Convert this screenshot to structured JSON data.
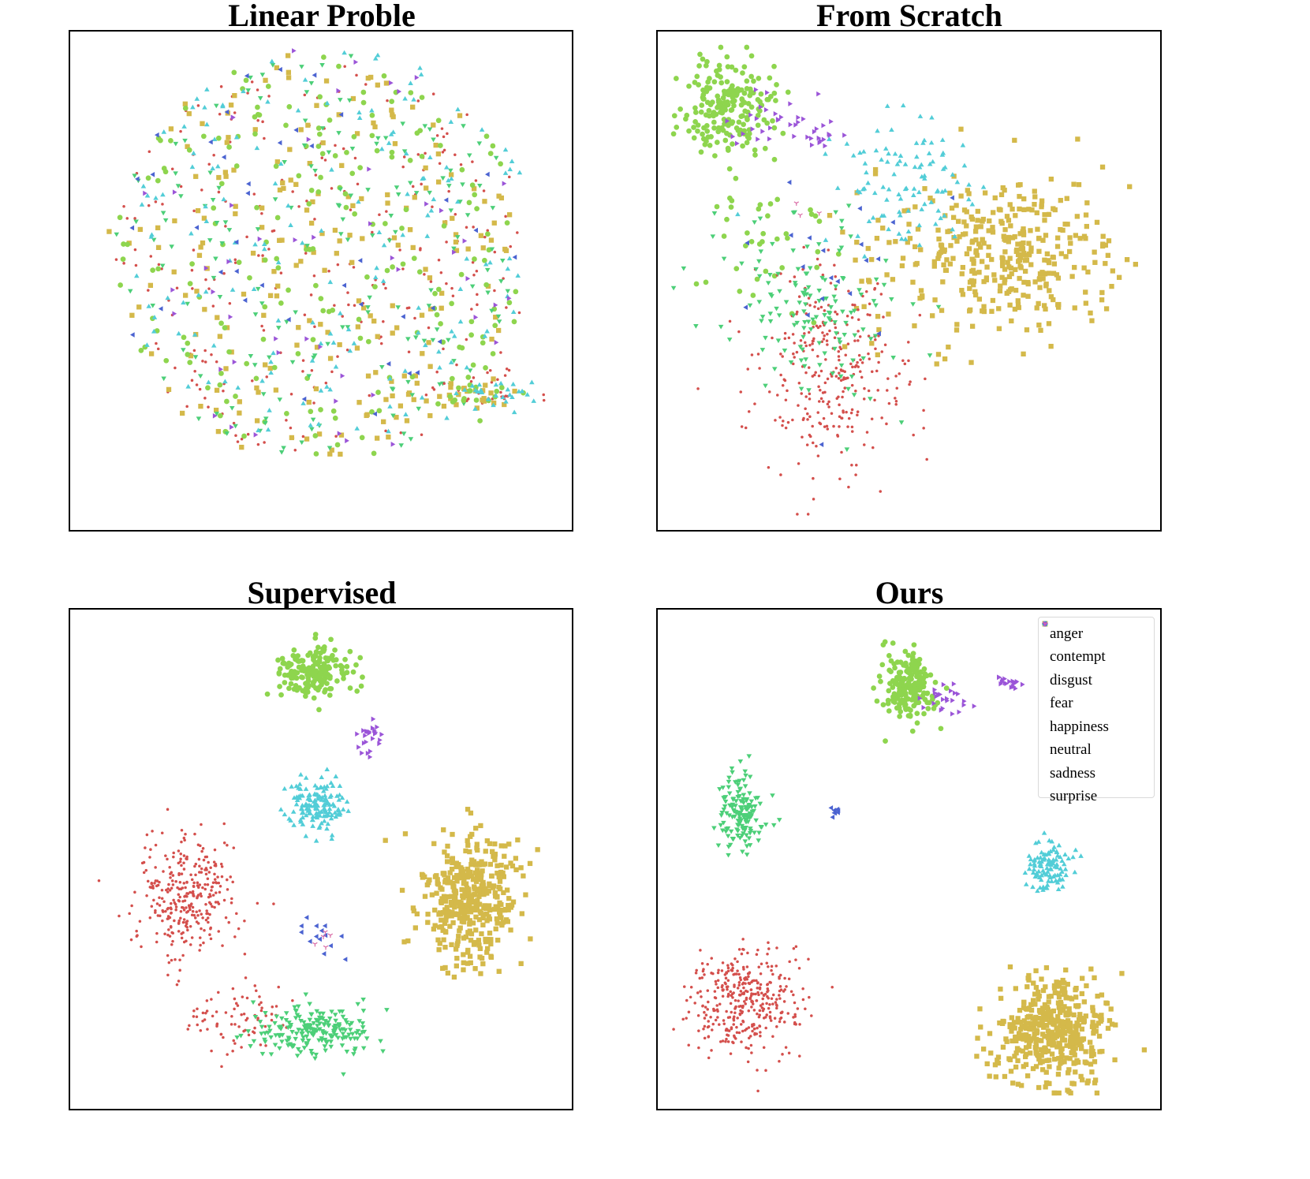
{
  "legend": {
    "classes": [
      "anger",
      "contempt",
      "disgust",
      "fear",
      "happiness",
      "neutral",
      "sadness",
      "surprise"
    ],
    "colors": [
      "#d44f4c",
      "#d4b94a",
      "#8ed54e",
      "#4ccf78",
      "#52cdd7",
      "#4b63d1",
      "#9b55d8",
      "#d96aa5"
    ],
    "markers": [
      "dot",
      "square",
      "circle",
      "triangle-down",
      "triangle-up",
      "triangle-left",
      "triangle-right",
      "tri-down"
    ]
  },
  "chart_data": [
    {
      "type": "scatter",
      "title": "Linear Proble",
      "xlabel": "",
      "ylabel": "",
      "grid": false,
      "legend": "none",
      "clusters": [
        {
          "class": "anger",
          "center": [
            0.5,
            0.55
          ],
          "spread": [
            0.42,
            0.42
          ],
          "count": 260
        },
        {
          "class": "contempt",
          "center": [
            0.48,
            0.55
          ],
          "spread": [
            0.42,
            0.42
          ],
          "count": 220
        },
        {
          "class": "disgust",
          "center": [
            0.5,
            0.55
          ],
          "spread": [
            0.42,
            0.42
          ],
          "count": 200
        },
        {
          "class": "fear",
          "center": [
            0.5,
            0.55
          ],
          "spread": [
            0.42,
            0.42
          ],
          "count": 170
        },
        {
          "class": "happiness",
          "center": [
            0.52,
            0.56
          ],
          "spread": [
            0.42,
            0.42
          ],
          "count": 160
        },
        {
          "class": "neutral",
          "center": [
            0.5,
            0.56
          ],
          "spread": [
            0.42,
            0.42
          ],
          "count": 40
        },
        {
          "class": "sadness",
          "center": [
            0.5,
            0.56
          ],
          "spread": [
            0.42,
            0.42
          ],
          "count": 50
        },
        {
          "class": "anger",
          "center": [
            0.83,
            0.27
          ],
          "spread": [
            0.14,
            0.05
          ],
          "count": 30
        },
        {
          "class": "contempt",
          "center": [
            0.83,
            0.26
          ],
          "spread": [
            0.12,
            0.04
          ],
          "count": 22
        },
        {
          "class": "disgust",
          "center": [
            0.83,
            0.26
          ],
          "spread": [
            0.12,
            0.04
          ],
          "count": 18
        },
        {
          "class": "happiness",
          "center": [
            0.85,
            0.26
          ],
          "spread": [
            0.12,
            0.04
          ],
          "count": 28
        }
      ]
    },
    {
      "type": "scatter",
      "title": "From Scratch",
      "xlabel": "",
      "ylabel": "",
      "grid": false,
      "legend": "none",
      "clusters": [
        {
          "class": "disgust",
          "center": [
            0.13,
            0.86
          ],
          "spread": [
            0.11,
            0.12
          ],
          "count": 200
        },
        {
          "class": "disgust",
          "center": [
            0.2,
            0.6
          ],
          "spread": [
            0.14,
            0.2
          ],
          "count": 40
        },
        {
          "class": "sadness",
          "center": [
            0.22,
            0.84
          ],
          "spread": [
            0.12,
            0.06
          ],
          "count": 28
        },
        {
          "class": "sadness",
          "center": [
            0.31,
            0.8
          ],
          "spread": [
            0.05,
            0.02
          ],
          "count": 14
        },
        {
          "class": "contempt",
          "center": [
            0.72,
            0.55
          ],
          "spread": [
            0.22,
            0.17
          ],
          "count": 320
        },
        {
          "class": "contempt",
          "center": [
            0.5,
            0.55
          ],
          "spread": [
            0.2,
            0.2
          ],
          "count": 60
        },
        {
          "class": "happiness",
          "center": [
            0.5,
            0.7
          ],
          "spread": [
            0.18,
            0.15
          ],
          "count": 100
        },
        {
          "class": "anger",
          "center": [
            0.33,
            0.3
          ],
          "spread": [
            0.18,
            0.24
          ],
          "count": 300
        },
        {
          "class": "fear",
          "center": [
            0.3,
            0.45
          ],
          "spread": [
            0.2,
            0.2
          ],
          "count": 140
        },
        {
          "class": "neutral",
          "center": [
            0.4,
            0.55
          ],
          "spread": [
            0.25,
            0.3
          ],
          "count": 20
        },
        {
          "class": "surprise",
          "center": [
            0.3,
            0.65
          ],
          "spread": [
            0.1,
            0.08
          ],
          "count": 3
        }
      ]
    },
    {
      "type": "scatter",
      "title": "Supervised",
      "xlabel": "",
      "ylabel": "",
      "grid": false,
      "legend": "none",
      "clusters": [
        {
          "class": "disgust",
          "center": [
            0.48,
            0.89
          ],
          "spread": [
            0.08,
            0.06
          ],
          "count": 180
        },
        {
          "class": "sadness",
          "center": [
            0.6,
            0.76
          ],
          "spread": [
            0.04,
            0.05
          ],
          "count": 24
        },
        {
          "class": "happiness",
          "center": [
            0.49,
            0.61
          ],
          "spread": [
            0.07,
            0.07
          ],
          "count": 150
        },
        {
          "class": "contempt",
          "center": [
            0.81,
            0.42
          ],
          "spread": [
            0.12,
            0.15
          ],
          "count": 400
        },
        {
          "class": "anger",
          "center": [
            0.22,
            0.42
          ],
          "spread": [
            0.12,
            0.14
          ],
          "count": 320
        },
        {
          "class": "anger",
          "center": [
            0.33,
            0.17
          ],
          "spread": [
            0.12,
            0.08
          ],
          "count": 80
        },
        {
          "class": "fear",
          "center": [
            0.48,
            0.14
          ],
          "spread": [
            0.15,
            0.06
          ],
          "count": 200
        },
        {
          "class": "neutral",
          "center": [
            0.5,
            0.33
          ],
          "spread": [
            0.1,
            0.06
          ],
          "count": 14
        },
        {
          "class": "surprise",
          "center": [
            0.5,
            0.33
          ],
          "spread": [
            0.04,
            0.02
          ],
          "count": 5
        }
      ]
    },
    {
      "type": "scatter",
      "title": "Ours",
      "xlabel": "",
      "ylabel": "",
      "grid": false,
      "legend": "top-right",
      "clusters": [
        {
          "class": "disgust",
          "center": [
            0.5,
            0.86
          ],
          "spread": [
            0.06,
            0.08
          ],
          "count": 200
        },
        {
          "class": "sadness",
          "center": [
            0.58,
            0.84
          ],
          "spread": [
            0.05,
            0.04
          ],
          "count": 24
        },
        {
          "class": "sadness",
          "center": [
            0.71,
            0.87
          ],
          "spread": [
            0.04,
            0.015
          ],
          "count": 18
        },
        {
          "class": "fear",
          "center": [
            0.15,
            0.6
          ],
          "spread": [
            0.05,
            0.09
          ],
          "count": 150
        },
        {
          "class": "happiness",
          "center": [
            0.79,
            0.48
          ],
          "spread": [
            0.05,
            0.06
          ],
          "count": 110
        },
        {
          "class": "neutral",
          "center": [
            0.35,
            0.6
          ],
          "spread": [
            0.015,
            0.01
          ],
          "count": 8
        },
        {
          "class": "anger",
          "center": [
            0.16,
            0.2
          ],
          "spread": [
            0.13,
            0.13
          ],
          "count": 380
        },
        {
          "class": "contempt",
          "center": [
            0.8,
            0.14
          ],
          "spread": [
            0.13,
            0.12
          ],
          "count": 440
        }
      ]
    }
  ]
}
